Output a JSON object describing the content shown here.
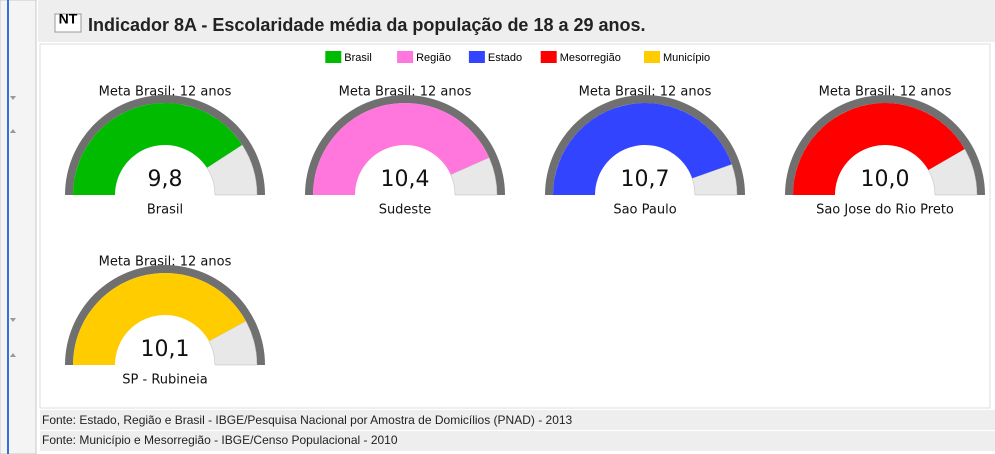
{
  "header": {
    "logo": "NT",
    "title": "Indicador 8A - Escolaridade média da população de 18 a 29 anos."
  },
  "legend": [
    {
      "name": "Brasil",
      "color": "#00bb00"
    },
    {
      "name": "Região",
      "color": "#ff77dd"
    },
    {
      "name": "Estado",
      "color": "#3344ff"
    },
    {
      "name": "Mesorregião",
      "color": "#ff0000"
    },
    {
      "name": "Município",
      "color": "#ffcc00"
    }
  ],
  "chart_data": [
    {
      "type": "gauge",
      "title": "Meta Brasil: 12 anos",
      "categories": [
        "Brasil"
      ],
      "values": [
        9.8
      ],
      "value_labels": [
        "9,8"
      ],
      "color": "#00bb00",
      "ylim": [
        0,
        12
      ]
    },
    {
      "type": "gauge",
      "title": "Meta Brasil: 12 anos",
      "categories": [
        "Sudeste"
      ],
      "values": [
        10.4
      ],
      "value_labels": [
        "10,4"
      ],
      "color": "#ff77dd",
      "ylim": [
        0,
        12
      ]
    },
    {
      "type": "gauge",
      "title": "Meta Brasil: 12 anos",
      "categories": [
        "Sao Paulo"
      ],
      "values": [
        10.7
      ],
      "value_labels": [
        "10,7"
      ],
      "color": "#3344ff",
      "ylim": [
        0,
        12
      ]
    },
    {
      "type": "gauge",
      "title": "Meta Brasil: 12 anos",
      "categories": [
        "Sao Jose do Rio Preto"
      ],
      "values": [
        10.0
      ],
      "value_labels": [
        "10,0"
      ],
      "color": "#ff0000",
      "ylim": [
        0,
        12
      ]
    },
    {
      "type": "gauge",
      "title": "Meta Brasil: 12 anos",
      "categories": [
        "SP - Rubineia"
      ],
      "values": [
        10.1
      ],
      "value_labels": [
        "10,1"
      ],
      "color": "#ffcc00",
      "ylim": [
        0,
        12
      ]
    }
  ],
  "footer": [
    "Fonte: Estado, Região e Brasil - IBGE/Pesquisa Nacional por Amostra de Domicílios (PNAD) - 2013",
    "Fonte: Município e Mesorregião - IBGE/Censo Populacional - 2010"
  ]
}
